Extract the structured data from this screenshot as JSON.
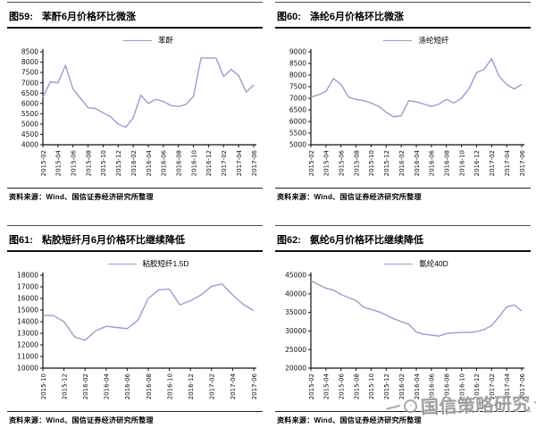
{
  "style": {
    "line_color": "#9c9cd0",
    "axis_color": "#111111",
    "watermark_color": "#8f8f8f"
  },
  "source": {
    "label": "资料来源：Wind、国信证券经济研究所整理"
  },
  "watermark": {
    "text": "国信策略研究",
    "logo": "circle-logo"
  },
  "chart_data": [
    {
      "type": "line",
      "fig_label": "图59:",
      "title": "苯酐6月价格环比微涨",
      "legend": "苯酐",
      "legend_position": "top",
      "grid": false,
      "ylim": [
        4000,
        8500
      ],
      "ystep": 500,
      "categories": [
        "2015-02",
        "2015-04",
        "2015-06",
        "2015-08",
        "2015-10",
        "2015-12",
        "2016-02",
        "2016-04",
        "2016-06",
        "2016-08",
        "2016-10",
        "2016-12",
        "2017-02",
        "2017-04",
        "2017-06"
      ],
      "values": [
        6300,
        7050,
        7000,
        7850,
        6700,
        6250,
        5800,
        5750,
        5550,
        5350,
        5000,
        4850,
        5300,
        6400,
        6000,
        6200,
        6100,
        5900,
        5850,
        5950,
        6350,
        8200,
        8200,
        8200,
        7300,
        7650,
        7350,
        6550,
        6900
      ]
    },
    {
      "type": "line",
      "fig_label": "图60:",
      "title": "涤纶6月价格环比微涨",
      "legend": "涤纶短纤",
      "legend_position": "top",
      "grid": false,
      "ylim": [
        5000,
        9000
      ],
      "ystep": 500,
      "categories": [
        "2015-02",
        "2015-04",
        "2015-06",
        "2015-08",
        "2015-10",
        "2015-12",
        "2016-02",
        "2016-04",
        "2016-06",
        "2016-08",
        "2016-10",
        "2016-12",
        "2017-02",
        "2017-04",
        "2017-06"
      ],
      "values": [
        7050,
        7150,
        7300,
        7850,
        7600,
        7050,
        6950,
        6900,
        6800,
        6650,
        6400,
        6200,
        6250,
        6900,
        6850,
        6750,
        6650,
        6750,
        6950,
        6800,
        7000,
        7400,
        8100,
        8250,
        8700,
        7950,
        7600,
        7400,
        7600
      ]
    },
    {
      "type": "line",
      "fig_label": "图61:",
      "title": "粘胶短纤月6月价格环比继续降低",
      "legend": "粘胶短纤1.5D",
      "legend_position": "top",
      "grid": false,
      "ylim": [
        10000,
        18000
      ],
      "ystep": 1000,
      "categories": [
        "2015-10",
        "2015-12",
        "2016-02",
        "2016-04",
        "2016-06",
        "2016-08",
        "2016-10",
        "2016-12",
        "2017-02",
        "2017-04",
        "2017-06"
      ],
      "values": [
        14550,
        14520,
        14000,
        12700,
        12400,
        13200,
        13600,
        13500,
        13400,
        14100,
        16000,
        16750,
        16800,
        15450,
        15800,
        16300,
        17050,
        17250,
        16300,
        15500,
        14950
      ]
    },
    {
      "type": "line",
      "fig_label": "图62:",
      "title": "氨纶6月价格环比继续降低",
      "legend": "氨纶40D",
      "legend_position": "top",
      "grid": false,
      "ylim": [
        20000,
        45000
      ],
      "ystep": 5000,
      "categories": [
        "2015-02",
        "2015-04",
        "2015-06",
        "2015-08",
        "2015-10",
        "2015-12",
        "2016-02",
        "2016-04",
        "2016-06",
        "2016-08",
        "2016-10",
        "2016-12",
        "2017-02",
        "2017-04",
        "2017-06"
      ],
      "values": [
        43500,
        42500,
        41500,
        41000,
        39800,
        39000,
        38200,
        36400,
        35800,
        35200,
        34300,
        33300,
        32500,
        31800,
        29700,
        29100,
        28900,
        28600,
        29300,
        29500,
        29600,
        29600,
        29800,
        30400,
        31500,
        33800,
        36500,
        37000,
        35400
      ]
    }
  ]
}
